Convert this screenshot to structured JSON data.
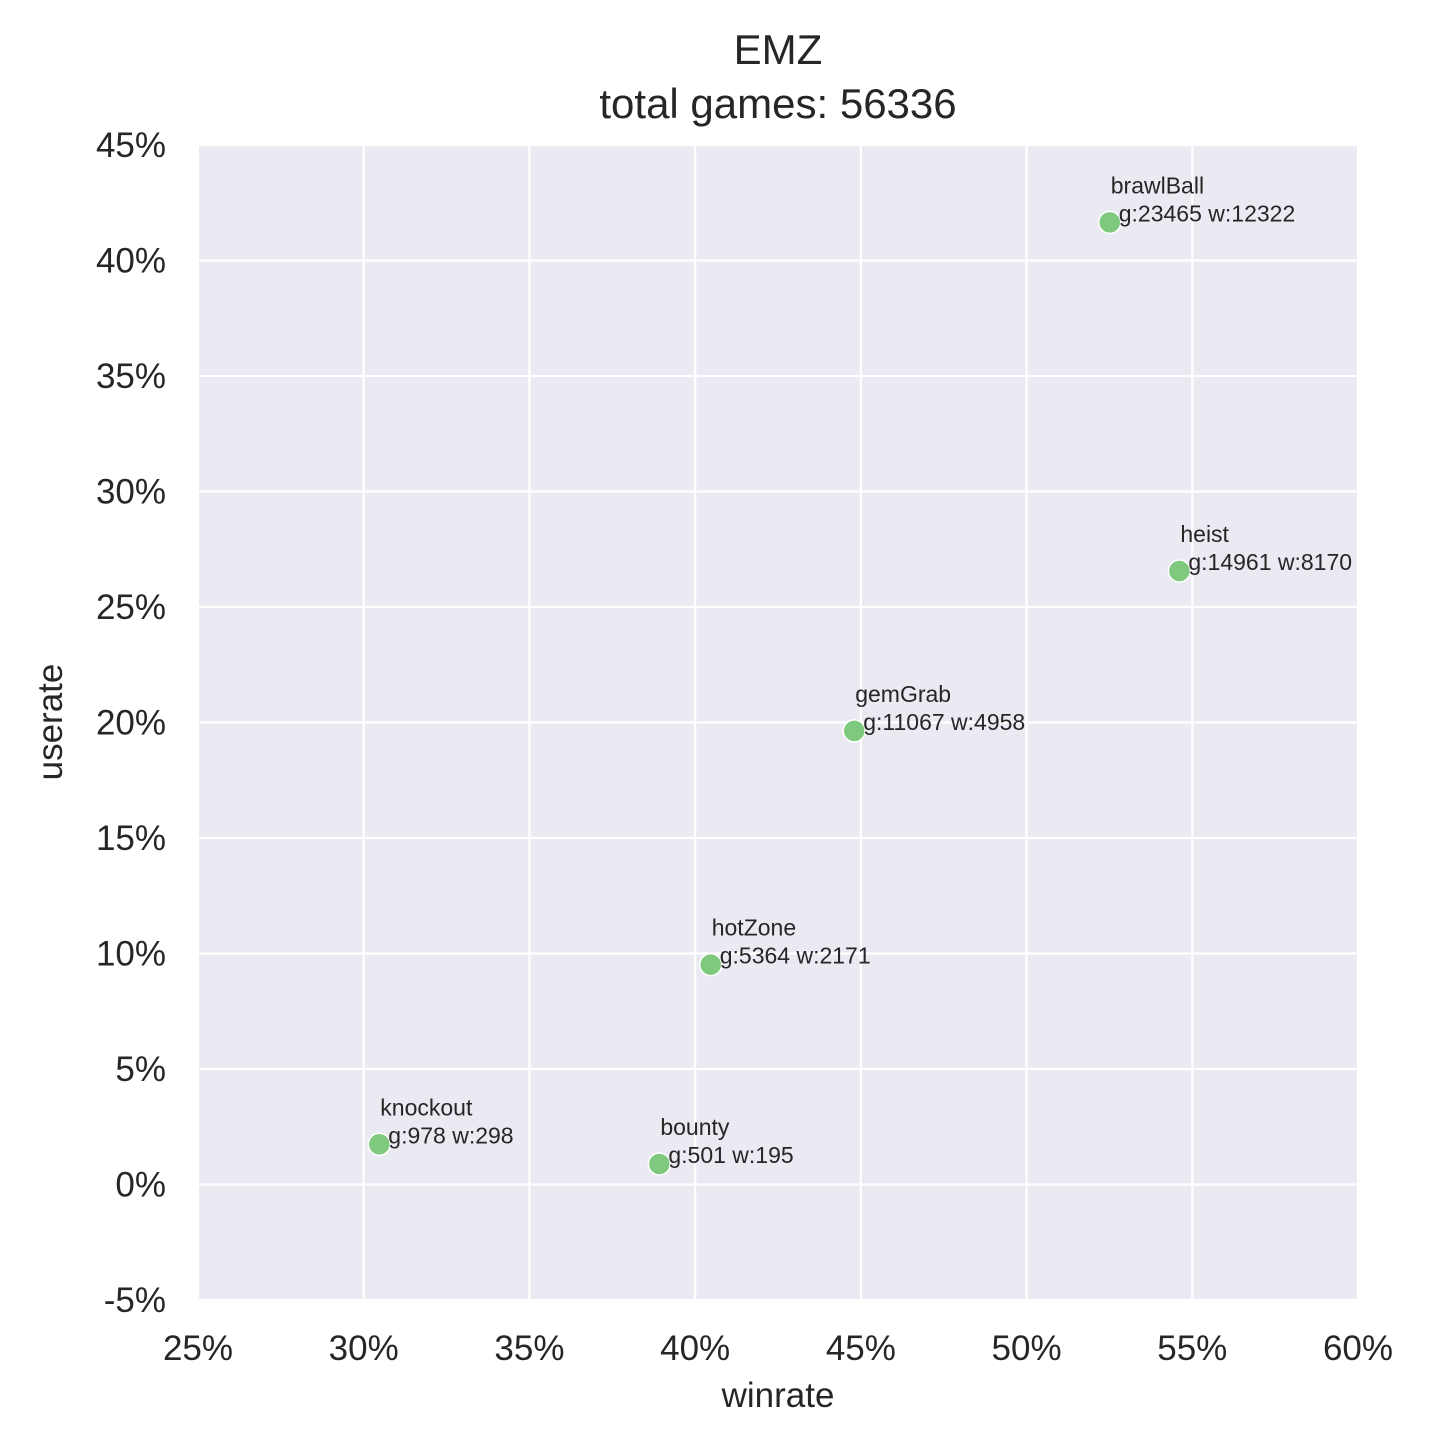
{
  "chart_data": {
    "type": "scatter",
    "title": "EMZ",
    "subtitle": "total games: 56336",
    "xlabel": "winrate",
    "ylabel": "userate",
    "xlim": [
      0.25,
      0.6
    ],
    "ylim": [
      -0.05,
      0.45
    ],
    "x_ticks": [
      {
        "value": 0.25,
        "label": "25%"
      },
      {
        "value": 0.3,
        "label": "30%"
      },
      {
        "value": 0.35,
        "label": "35%"
      },
      {
        "value": 0.4,
        "label": "40%"
      },
      {
        "value": 0.45,
        "label": "45%"
      },
      {
        "value": 0.5,
        "label": "50%"
      },
      {
        "value": 0.55,
        "label": "55%"
      },
      {
        "value": 0.6,
        "label": "60%"
      }
    ],
    "y_ticks": [
      {
        "value": -0.05,
        "label": "-5%"
      },
      {
        "value": 0.0,
        "label": "0%"
      },
      {
        "value": 0.05,
        "label": "5%"
      },
      {
        "value": 0.1,
        "label": "10%"
      },
      {
        "value": 0.15,
        "label": "15%"
      },
      {
        "value": 0.2,
        "label": "20%"
      },
      {
        "value": 0.25,
        "label": "25%"
      },
      {
        "value": 0.3,
        "label": "30%"
      },
      {
        "value": 0.35,
        "label": "35%"
      },
      {
        "value": 0.4,
        "label": "40%"
      },
      {
        "value": 0.45,
        "label": "45%"
      }
    ],
    "grid": true,
    "background": "#eaeaf2",
    "point_color": "#7fc97f",
    "points": [
      {
        "mode": "brawlBall",
        "x": 0.5251,
        "y": 0.4165,
        "detail": "g:23465 w:12322"
      },
      {
        "mode": "heist",
        "x": 0.5461,
        "y": 0.2656,
        "detail": "g:14961 w:8170"
      },
      {
        "mode": "gemGrab",
        "x": 0.448,
        "y": 0.1964,
        "detail": "g:11067 w:4958"
      },
      {
        "mode": "hotZone",
        "x": 0.4047,
        "y": 0.0952,
        "detail": "g:5364 w:2171"
      },
      {
        "mode": "knockout",
        "x": 0.3047,
        "y": 0.0174,
        "detail": "g:978 w:298"
      },
      {
        "mode": "bounty",
        "x": 0.3892,
        "y": 0.0089,
        "detail": "g:501 w:195"
      }
    ]
  }
}
